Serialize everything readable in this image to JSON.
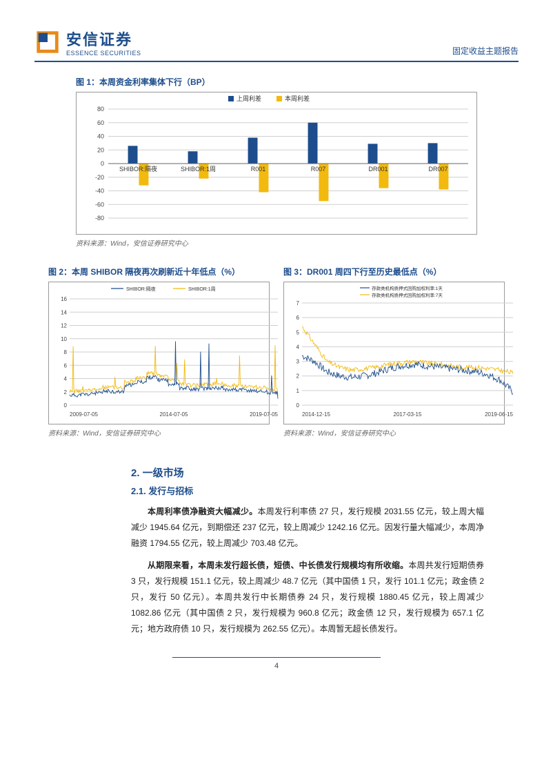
{
  "header": {
    "logo_cn": "安信证券",
    "logo_en": "ESSENCE SECURITIES",
    "right": "固定收益主题报告"
  },
  "fig1": {
    "title": "图 1：本周资金利率集体下行（BP）",
    "legend": [
      "上周利差",
      "本周利差"
    ],
    "categories": [
      "SHIBOR:隔夜",
      "SHIBOR:1周",
      "R001",
      "R007",
      "DR001",
      "DR007"
    ],
    "series_a": [
      26,
      18,
      38,
      60,
      29,
      30
    ],
    "series_b": [
      -32,
      -22,
      -42,
      -55,
      -36,
      -38
    ],
    "series_a_color": "#1d4d8c",
    "series_b_color": "#f2b90f",
    "ylim": [
      -80,
      80
    ],
    "ytick_step": 20,
    "grid_color": "#cfcfcf",
    "background": "#ffffff",
    "source": "资料来源：Wind，安信证券研究中心"
  },
  "fig2": {
    "title": "图 2：本周 SHIBOR 隔夜再次刷新近十年低点（%）",
    "legend": [
      "SHIBOR:隔夜",
      "SHIBOR:1周"
    ],
    "colors": [
      "#1d4d8c",
      "#f2b90f"
    ],
    "x_ticks": [
      "2009-07-05",
      "2014-07-05",
      "2019-07-05"
    ],
    "y_ticks": [
      0,
      2,
      4,
      6,
      8,
      10,
      12,
      14,
      16
    ],
    "ylim": [
      0,
      16
    ],
    "grid_color": "#cfcfcf",
    "background": "#ffffff",
    "source": "资料来源：Wind，安信证券研究中心"
  },
  "fig3": {
    "title": "图 3：DR001 周四下行至历史最低点（%）",
    "legend": [
      "存款类机构质押式回购加权利率:1天",
      "存款类机构质押式回购加权利率:7天"
    ],
    "colors": [
      "#1d4d8c",
      "#f2b90f"
    ],
    "x_ticks": [
      "2014-12-15",
      "2017-03-15",
      "2019-06-15"
    ],
    "y_ticks": [
      0,
      1,
      2,
      3,
      4,
      5,
      6,
      7
    ],
    "ylim": [
      0,
      7
    ],
    "grid_color": "#cfcfcf",
    "background": "#ffffff",
    "source": "资料来源：Wind，安信证券研究中心"
  },
  "body": {
    "h2": "2. 一级市场",
    "h21": "2.1. 发行与招标",
    "p1_bold": "本周利率债净融资大幅减少。",
    "p1": "本周发行利率债 27 只，发行规模 2031.55 亿元，较上周大幅减少 1945.64 亿元，到期偿还 237 亿元，较上周减少 1242.16 亿元。因发行量大幅减少，本周净融资 1794.55 亿元，较上周减少 703.48 亿元。",
    "p2_bold": "从期限来看，本周未发行超长债，短债、中长债发行规模均有所收缩。",
    "p2": "本周共发行短期债券 3 只，发行规模 151.1 亿元，较上周减少 48.7 亿元（其中国债 1 只，发行 101.1 亿元；政金债 2 只，发行 50 亿元）。本周共发行中长期债券 24 只，发行规模 1880.45 亿元，较上周减少 1082.86 亿元（其中国债 2 只，发行规模为 960.8 亿元；政金债 12 只，发行规模为 657.1 亿元；地方政府债 10 只，发行规模为 262.55 亿元）。本周暂无超长债发行。"
  },
  "page_num": "4"
}
